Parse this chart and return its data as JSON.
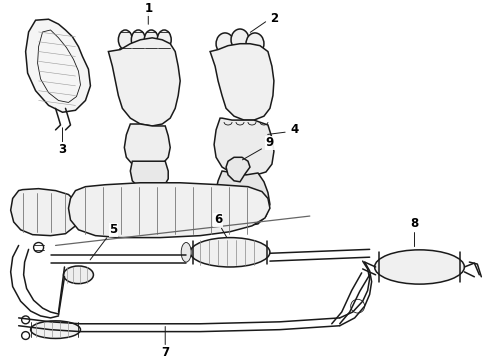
{
  "background_color": "#ffffff",
  "line_color": "#1a1a1a",
  "fig_width": 4.9,
  "fig_height": 3.6,
  "dpi": 100,
  "label_fontsize": 8.5,
  "lw_main": 1.1,
  "lw_thin": 0.6,
  "lw_thick": 1.4
}
